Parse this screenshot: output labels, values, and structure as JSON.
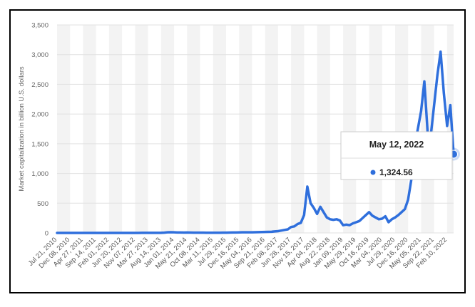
{
  "chart_data": {
    "type": "line",
    "y_label": "Market capitalization in billion U.S. dollars",
    "categories": [
      "Jul 21, 2010",
      null,
      null,
      null,
      "Dec 08, 2010",
      null,
      null,
      null,
      "Apr 27, 2011",
      null,
      null,
      null,
      "Sep 14, 2011",
      null,
      null,
      null,
      "Feb 01, 2012",
      null,
      null,
      null,
      "Jun 20, 2012",
      null,
      null,
      null,
      "Nov 07, 2012",
      null,
      null,
      null,
      "Mar 27, 2013",
      null,
      null,
      null,
      "Aug 14, 2013",
      null,
      null,
      null,
      "Jan 01, 2014",
      null,
      null,
      null,
      "May 21, 2014",
      null,
      null,
      null,
      "Oct 08, 2014",
      null,
      null,
      null,
      "Mar 11, 2015",
      null,
      null,
      null,
      "Jul 29, 2015",
      null,
      null,
      null,
      "Dec 16, 2015",
      null,
      null,
      null,
      "May 04, 2016",
      null,
      null,
      null,
      "Sep 21, 2016",
      null,
      null,
      null,
      "Feb 08, 2017",
      null,
      null,
      null,
      "Jun 28, 2017",
      null,
      null,
      null,
      "Nov 15, 2017",
      null,
      null,
      null,
      "Apr 04, 2018",
      null,
      null,
      null,
      "Aug 22, 2018",
      null,
      null,
      null,
      "Jan 09, 2019",
      null,
      null,
      null,
      "May 29, 2019",
      null,
      null,
      null,
      "Oct 16, 2019",
      null,
      null,
      null,
      "Mar 04, 2020",
      null,
      null,
      null,
      "Jul 29, 2020",
      null,
      null,
      null,
      "Dec 16, 2020",
      null,
      null,
      null,
      "May 05, 2021",
      null,
      null,
      null,
      "Sep 22, 2021",
      null,
      null,
      null,
      "Feb 10, 2022",
      null,
      null
    ],
    "series": [
      {
        "name": "Market capitalization",
        "color": "#2f6fdc",
        "values": [
          0.01,
          0.02,
          0.03,
          0.06,
          0.1,
          0.15,
          0.1,
          0.05,
          0.05,
          0.06,
          0.05,
          0.06,
          0.1,
          0.1,
          0.1,
          0.12,
          0.12,
          0.11,
          0.1,
          0.12,
          0.13,
          0.13,
          0.15,
          0.2,
          0.3,
          0.5,
          1,
          1.5,
          1.2,
          1.4,
          1.4,
          1.5,
          2,
          5,
          10,
          12,
          10,
          8,
          7,
          6,
          7,
          6,
          5,
          5,
          4,
          4,
          3,
          3,
          3,
          3.5,
          3.5,
          4,
          5,
          6,
          7,
          8,
          9,
          10,
          10,
          10,
          11,
          12,
          13,
          15,
          16,
          18,
          20,
          25,
          30,
          40,
          50,
          60,
          100,
          110,
          150,
          170,
          300,
          780,
          500,
          420,
          320,
          440,
          350,
          260,
          230,
          220,
          230,
          210,
          130,
          140,
          130,
          160,
          180,
          200,
          250,
          300,
          350,
          290,
          260,
          230,
          240,
          280,
          180,
          230,
          260,
          300,
          350,
          400,
          560,
          900,
          1450,
          1750,
          2050,
          2550,
          1700,
          1650,
          2150,
          2650,
          3050,
          2350,
          1800,
          2150,
          1324.56
        ]
      }
    ],
    "ylim": [
      0,
      3500
    ],
    "yticks": [
      0,
      500,
      {
        "value": 1000,
        "label": "1,000"
      },
      {
        "value": 1500,
        "label": "1,500"
      },
      {
        "value": 2000,
        "label": "2,000"
      },
      {
        "value": 2500,
        "label": "2,500"
      },
      {
        "value": 3000,
        "label": "3,000"
      },
      {
        "value": 3500,
        "label": "3,500"
      }
    ],
    "grid": true,
    "tooltip": {
      "date": "May 12, 2022",
      "value_label": "1,324.56"
    }
  }
}
